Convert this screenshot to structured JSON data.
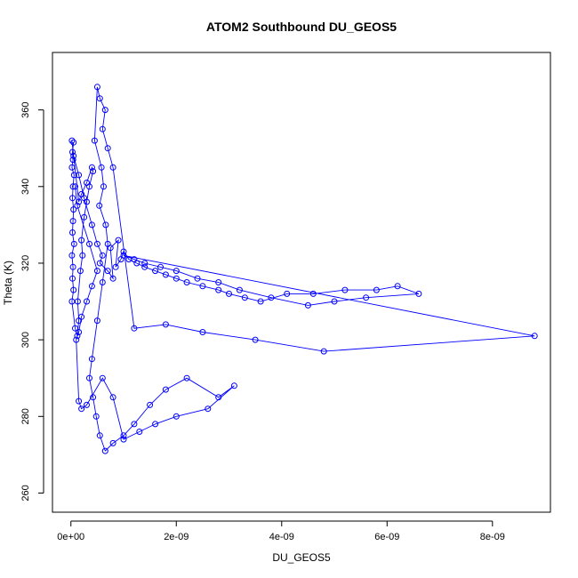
{
  "chart_data": {
    "type": "scatter",
    "title": "ATOM2 Southbound DU_GEOS5",
    "xlabel": "DU_GEOS5",
    "ylabel": "Theta (K)",
    "xlim": [
      -3.5e-10,
      9.1e-09
    ],
    "ylim": [
      255,
      375
    ],
    "x_ticks": [
      0,
      2e-09,
      4e-09,
      6e-09,
      8e-09
    ],
    "x_tick_labels": [
      "0e+00",
      "2e-09",
      "4e-09",
      "6e-09",
      "8e-09"
    ],
    "y_ticks": [
      260,
      280,
      300,
      320,
      340,
      360
    ],
    "y_tick_labels": [
      "260",
      "280",
      "300",
      "320",
      "340",
      "360"
    ],
    "grid": false,
    "legend": "none",
    "color": "#0000ff",
    "marker": "open-circle",
    "connected": true,
    "series": [
      {
        "x": [
          5e-11,
          3e-11,
          4e-11,
          2e-11,
          6e-11,
          4e-11,
          3e-11,
          5e-11,
          4e-11,
          3e-11,
          6e-11,
          2e-11,
          4e-11,
          3e-11,
          5e-11,
          2e-11,
          8e-11,
          1.2e-10,
          1.5e-10,
          1.3e-10,
          1.8e-10,
          2.2e-10,
          2e-10,
          2.5e-10,
          3e-10,
          3.5e-10,
          4.2e-10,
          4e-10,
          3e-10,
          2e-10,
          1.5e-10,
          2e-11,
          5e-11,
          1.5e-10,
          2.5e-10,
          4e-10,
          5e-10,
          6e-10,
          5.5e-10,
          7e-10,
          8e-10,
          7.5e-10,
          9e-10,
          8.5e-10,
          9.5e-10,
          1e-09,
          1.1e-09,
          1.25e-09,
          1.4e-09,
          1.6e-09,
          1.8e-09,
          2e-09,
          2.2e-09,
          2.5e-09,
          2.8e-09,
          3e-09,
          3.3e-09,
          3.6e-09,
          4.1e-09,
          4.6e-09,
          5.2e-09,
          5.8e-09,
          6.2e-09,
          6.6e-09,
          5.6e-09,
          5e-09,
          4.5e-09,
          3.8e-09,
          3.2e-09,
          2.8e-09,
          2.4e-09,
          2e-09,
          1.7e-09,
          1.4e-09,
          1.2e-09,
          1e-09,
          8.8e-09,
          4.8e-09,
          3.5e-09,
          2.5e-09,
          1.8e-09,
          1.2e-09,
          8e-10,
          7e-10,
          6e-10,
          6.5e-10,
          5.5e-10,
          5e-10,
          4.5e-10,
          5.8e-10,
          6.2e-10,
          5.4e-10,
          6.6e-10,
          7e-10,
          6e-10,
          5e-10,
          4e-10,
          3.5e-10,
          4.2e-10,
          4.8e-10,
          5.5e-10,
          6.5e-10,
          8e-10,
          1e-09,
          1.2e-09,
          1.5e-09,
          1.8e-09,
          2.2e-09,
          2.8e-09,
          3.1e-09,
          2.6e-09,
          2e-09,
          1.6e-09,
          1.3e-09,
          1e-09,
          8e-10,
          6e-10,
          3e-10,
          2e-10,
          1.5e-10,
          1e-10,
          1.5e-10,
          2e-10,
          3e-10,
          4e-10,
          5e-10,
          3.5e-10,
          1.2e-10,
          8e-11
        ],
        "y": [
          351.5,
          349,
          347,
          345,
          343,
          340,
          337,
          334,
          331,
          328,
          325,
          322,
          319,
          316,
          313,
          310,
          303,
          301,
          305,
          310,
          318,
          322,
          326,
          332,
          336,
          340,
          344,
          345,
          341,
          338,
          336,
          352,
          348,
          343,
          337,
          330,
          325,
          322,
          320,
          318,
          316,
          324,
          326,
          319,
          321,
          323,
          321,
          320,
          319,
          318,
          317,
          316,
          315,
          314,
          313,
          312,
          311,
          310,
          312,
          312,
          313,
          313,
          314,
          312,
          311,
          310,
          309,
          311,
          313,
          315,
          316,
          318,
          319,
          320,
          321,
          322,
          301,
          297,
          300,
          302,
          304,
          303,
          345,
          350,
          355,
          360,
          363,
          366,
          352,
          345,
          340,
          335,
          330,
          325,
          315,
          305,
          295,
          290,
          285,
          280,
          275,
          271,
          273,
          275,
          278,
          283,
          287,
          290,
          285,
          288,
          282,
          280,
          278,
          276,
          274,
          285,
          290,
          283,
          282,
          284,
          300,
          302,
          306,
          310,
          314,
          318,
          325,
          335,
          340
        ]
      }
    ]
  }
}
